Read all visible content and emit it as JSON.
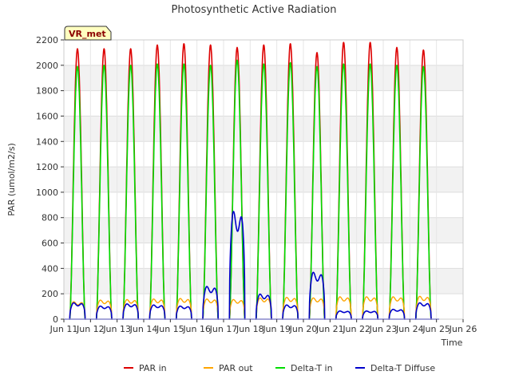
{
  "chart_data": {
    "type": "line",
    "title": "Photosynthetic Active Radiation",
    "xlabel": "Time",
    "ylabel": "PAR (umol/m2/s)",
    "site_label": "VR_met",
    "ylim": [
      0,
      2200
    ],
    "xlim": [
      11,
      26
    ],
    "y_ticks": [
      0,
      200,
      400,
      600,
      800,
      1000,
      1200,
      1400,
      1600,
      1800,
      2000,
      2200
    ],
    "x_ticks": [
      {
        "v": 11,
        "label": "Jun 11"
      },
      {
        "v": 12,
        "label": "Jun 12"
      },
      {
        "v": 13,
        "label": "Jun 13"
      },
      {
        "v": 14,
        "label": "Jun 14"
      },
      {
        "v": 15,
        "label": "Jun 15"
      },
      {
        "v": 16,
        "label": "Jun 16"
      },
      {
        "v": 17,
        "label": "Jun 17"
      },
      {
        "v": 18,
        "label": "Jun 18"
      },
      {
        "v": 19,
        "label": "Jun 19"
      },
      {
        "v": 20,
        "label": "Jun 20"
      },
      {
        "v": 21,
        "label": "Jun 21"
      },
      {
        "v": 22,
        "label": "Jun 22"
      },
      {
        "v": 23,
        "label": "Jun 23"
      },
      {
        "v": 24,
        "label": "Jun 24"
      },
      {
        "v": 25,
        "label": "Jun 25"
      },
      {
        "v": 26,
        "label": "Jun 26"
      }
    ],
    "grid": true,
    "legend_position": "bottom",
    "series": [
      {
        "name": "PAR in",
        "color": "#dd0000"
      },
      {
        "name": "PAR out",
        "color": "#ffa500"
      },
      {
        "name": "Delta-T in",
        "color": "#00dd00"
      },
      {
        "name": "Delta-T Diffuse",
        "color": "#0000cc"
      }
    ],
    "daily_peaks": [
      {
        "day": 11,
        "par_in": 2130,
        "par_out": 160,
        "dt_in": 1990,
        "diffuse": 150
      },
      {
        "day": 12,
        "par_in": 2130,
        "par_out": 175,
        "dt_in": 2000,
        "diffuse": 120
      },
      {
        "day": 13,
        "par_in": 2130,
        "par_out": 180,
        "dt_in": 2000,
        "diffuse": 140
      },
      {
        "day": 14,
        "par_in": 2160,
        "par_out": 185,
        "dt_in": 2010,
        "diffuse": 130
      },
      {
        "day": 15,
        "par_in": 2170,
        "par_out": 190,
        "dt_in": 2010,
        "diffuse": 120
      },
      {
        "day": 16,
        "par_in": 2160,
        "par_out": 185,
        "dt_in": 2000,
        "diffuse": 300
      },
      {
        "day": 17,
        "par_in": 2140,
        "par_out": 180,
        "dt_in": 2040,
        "diffuse": 990
      },
      {
        "day": 18,
        "par_in": 2160,
        "par_out": 195,
        "dt_in": 2010,
        "diffuse": 230
      },
      {
        "day": 19,
        "par_in": 2170,
        "par_out": 200,
        "dt_in": 2020,
        "diffuse": 130
      },
      {
        "day": 20,
        "par_in": 2100,
        "par_out": 195,
        "dt_in": 1990,
        "diffuse": 430
      },
      {
        "day": 21,
        "par_in": 2180,
        "par_out": 205,
        "dt_in": 2010,
        "diffuse": 75
      },
      {
        "day": 22,
        "par_in": 2180,
        "par_out": 205,
        "dt_in": 2010,
        "diffuse": 75
      },
      {
        "day": 23,
        "par_in": 2140,
        "par_out": 205,
        "dt_in": 2000,
        "diffuse": 90
      },
      {
        "day": 24,
        "par_in": 2120,
        "par_out": 210,
        "dt_in": 1990,
        "diffuse": 150
      }
    ]
  }
}
